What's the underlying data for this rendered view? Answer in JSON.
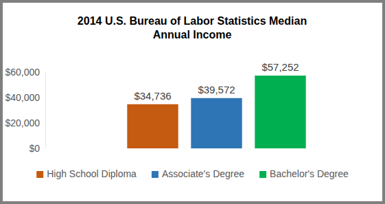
{
  "chart_data": {
    "type": "bar",
    "title": "2014 U.S. Bureau of Labor Statistics Median Annual Income",
    "categories": [
      "High School Diploma",
      "Associate's Degree",
      "Bachelor's Degree"
    ],
    "values": [
      34736,
      39572,
      57252
    ],
    "value_labels": [
      "$34,736",
      "$39,572",
      "$57,252"
    ],
    "colors": [
      "#c55a11",
      "#2e75b6",
      "#00b050"
    ],
    "ylim": [
      0,
      60000
    ],
    "yticks": [
      {
        "value": 0,
        "label": "$0"
      },
      {
        "value": 20000,
        "label": "$20,000"
      },
      {
        "value": 40000,
        "label": "$40,000"
      },
      {
        "value": 60000,
        "label": "$60,000"
      }
    ],
    "grid": false,
    "data_labels": true,
    "tick_labels": "y",
    "legend": "bottom"
  }
}
